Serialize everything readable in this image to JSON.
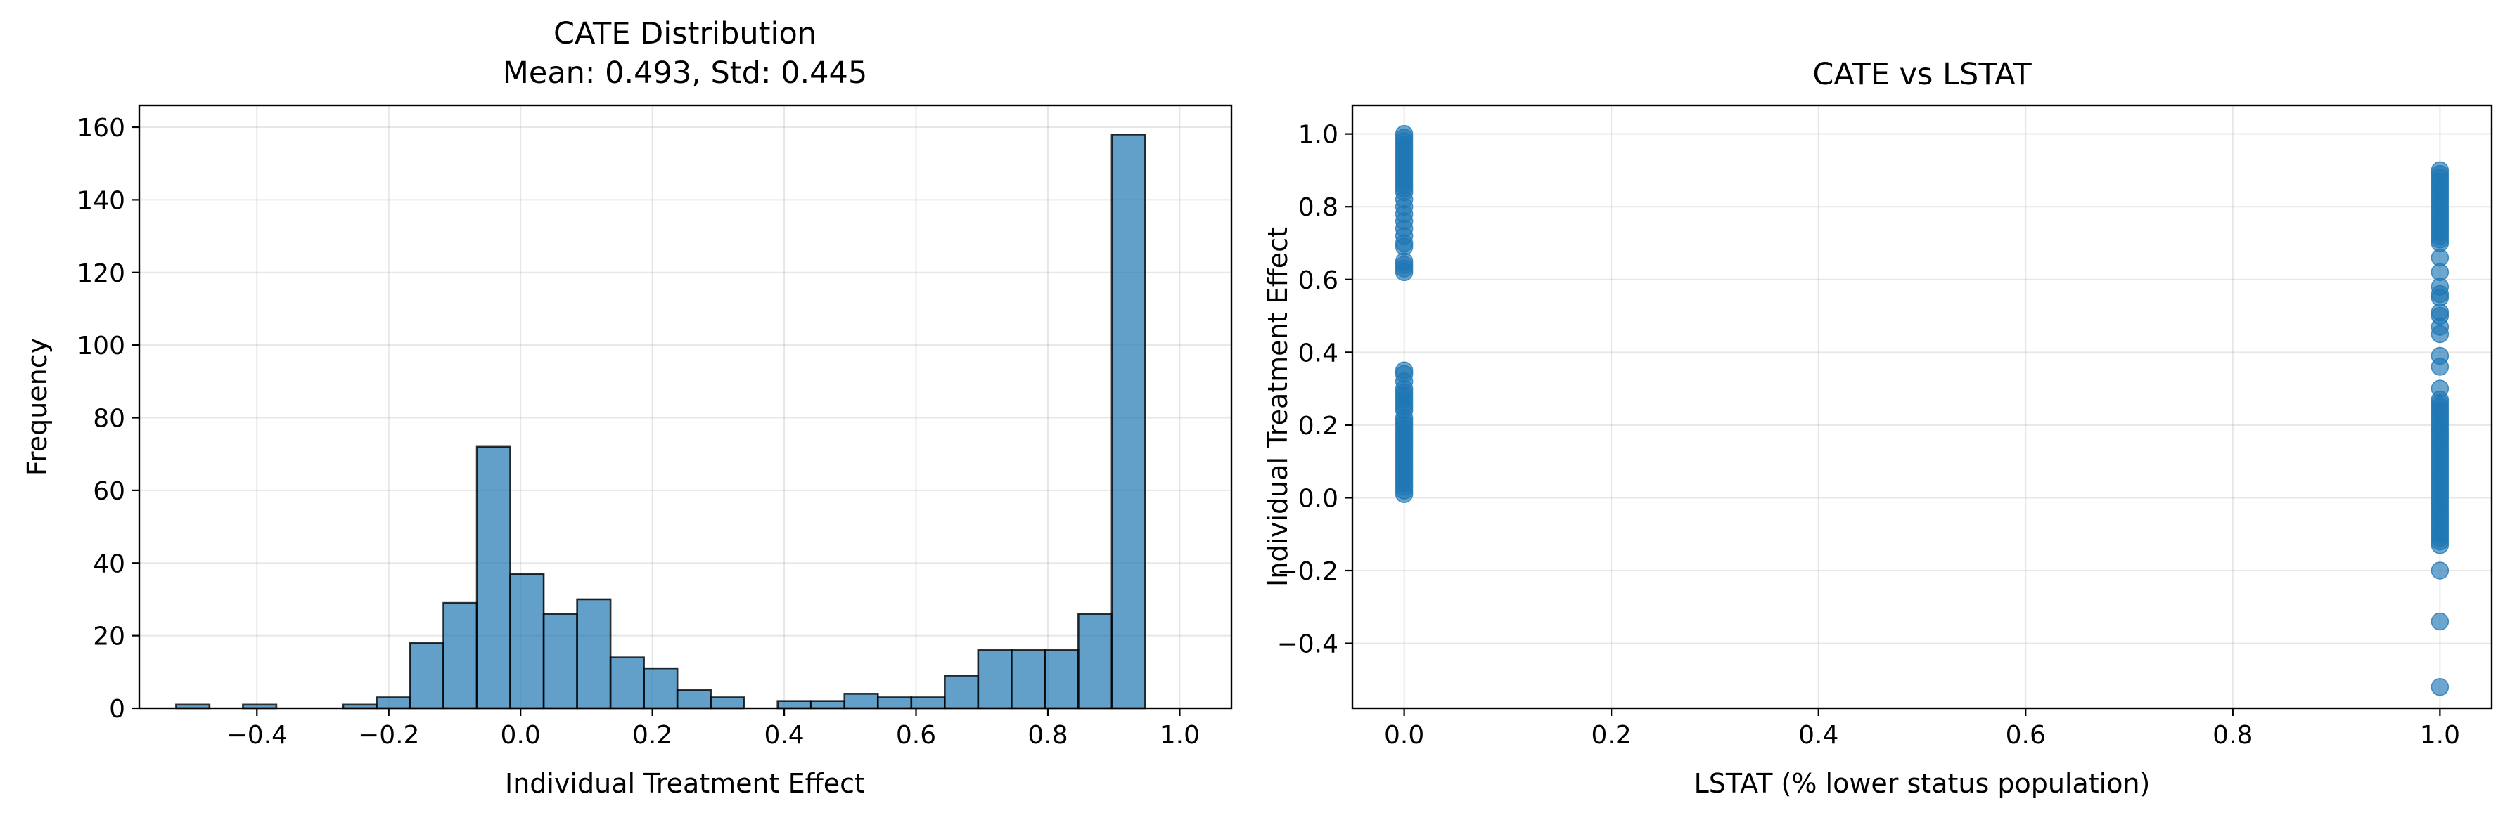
{
  "chart_data": [
    {
      "type": "bar",
      "title": "CATE Distribution\nMean: 0.493, Std: 0.445",
      "title_lines": [
        "CATE Distribution",
        "Mean: 0.493, Std: 0.445"
      ],
      "xlabel": "Individual Treatment Effect",
      "ylabel": "Frequency",
      "xlim": [
        -0.5785,
        1.0785
      ],
      "ylim": [
        0,
        166
      ],
      "xticks": [
        -0.4,
        -0.2,
        0.0,
        0.2,
        0.4,
        0.6,
        0.8,
        1.0
      ],
      "xtick_labels": [
        "−0.4",
        "−0.2",
        "0.0",
        "0.2",
        "0.4",
        "0.6",
        "0.8",
        "1.0"
      ],
      "yticks": [
        0,
        20,
        40,
        60,
        80,
        100,
        120,
        140,
        160
      ],
      "ytick_labels": [
        "0",
        "20",
        "40",
        "60",
        "80",
        "100",
        "120",
        "140",
        "160"
      ],
      "grid": true,
      "bar_color": "#1f77b4",
      "bar_alpha": 0.7,
      "edge_color": "#000000",
      "bin_start": -0.5226,
      "bin_width": 0.0507,
      "values": [
        1,
        0,
        1,
        0,
        0,
        1,
        3,
        18,
        29,
        72,
        37,
        26,
        30,
        14,
        11,
        5,
        3,
        0,
        2,
        2,
        4,
        3,
        3,
        9,
        16,
        16,
        16,
        26,
        158,
        0
      ]
    },
    {
      "type": "scatter",
      "title": "CATE vs LSTAT",
      "xlabel": "LSTAT (% lower status population)",
      "ylabel": "Individual Treatment Effect",
      "xlim": [
        -0.05,
        1.05
      ],
      "ylim": [
        -0.5785,
        1.0785
      ],
      "xticks": [
        0.0,
        0.2,
        0.4,
        0.6,
        0.8,
        1.0
      ],
      "xtick_labels": [
        "0.0",
        "0.2",
        "0.4",
        "0.6",
        "0.8",
        "1.0"
      ],
      "yticks": [
        -0.4,
        -0.2,
        0.0,
        0.2,
        0.4,
        0.6,
        0.8,
        1.0
      ],
      "ytick_labels": [
        "−0.4",
        "−0.2",
        "0.0",
        "0.2",
        "0.4",
        "0.6",
        "0.8",
        "1.0"
      ],
      "grid": true,
      "point_color": "#1f77b4",
      "point_alpha": 0.65,
      "series": [
        {
          "x": 0.0,
          "y": [
            1.0,
            0.99,
            0.98,
            0.97,
            0.96,
            0.95,
            0.94,
            0.93,
            0.92,
            0.91,
            0.9,
            0.89,
            0.88,
            0.87,
            0.86,
            0.85,
            0.84,
            0.82,
            0.8,
            0.78,
            0.76,
            0.74,
            0.72,
            0.7,
            0.69,
            0.65,
            0.64,
            0.63,
            0.62,
            0.35,
            0.34,
            0.32,
            0.3,
            0.29,
            0.28,
            0.27,
            0.26,
            0.25,
            0.24,
            0.22,
            0.21,
            0.2,
            0.19,
            0.18,
            0.17,
            0.16,
            0.15,
            0.14,
            0.13,
            0.12,
            0.11,
            0.1,
            0.09,
            0.08,
            0.07,
            0.06,
            0.05,
            0.04,
            0.03,
            0.02,
            0.01
          ]
        },
        {
          "x": 1.0,
          "y": [
            0.9,
            0.89,
            0.88,
            0.87,
            0.86,
            0.85,
            0.84,
            0.83,
            0.82,
            0.81,
            0.8,
            0.79,
            0.78,
            0.77,
            0.76,
            0.75,
            0.74,
            0.73,
            0.72,
            0.71,
            0.7,
            0.66,
            0.62,
            0.58,
            0.56,
            0.55,
            0.51,
            0.5,
            0.47,
            0.45,
            0.39,
            0.36,
            0.3,
            0.27,
            0.26,
            0.25,
            0.24,
            0.23,
            0.22,
            0.21,
            0.2,
            0.19,
            0.18,
            0.17,
            0.16,
            0.15,
            0.14,
            0.13,
            0.12,
            0.11,
            0.1,
            0.09,
            0.08,
            0.07,
            0.06,
            0.05,
            0.04,
            0.03,
            0.02,
            0.01,
            0.0,
            -0.01,
            -0.02,
            -0.03,
            -0.04,
            -0.05,
            -0.06,
            -0.07,
            -0.08,
            -0.09,
            -0.1,
            -0.11,
            -0.12,
            -0.13,
            -0.2,
            -0.34,
            -0.52
          ]
        }
      ]
    }
  ]
}
